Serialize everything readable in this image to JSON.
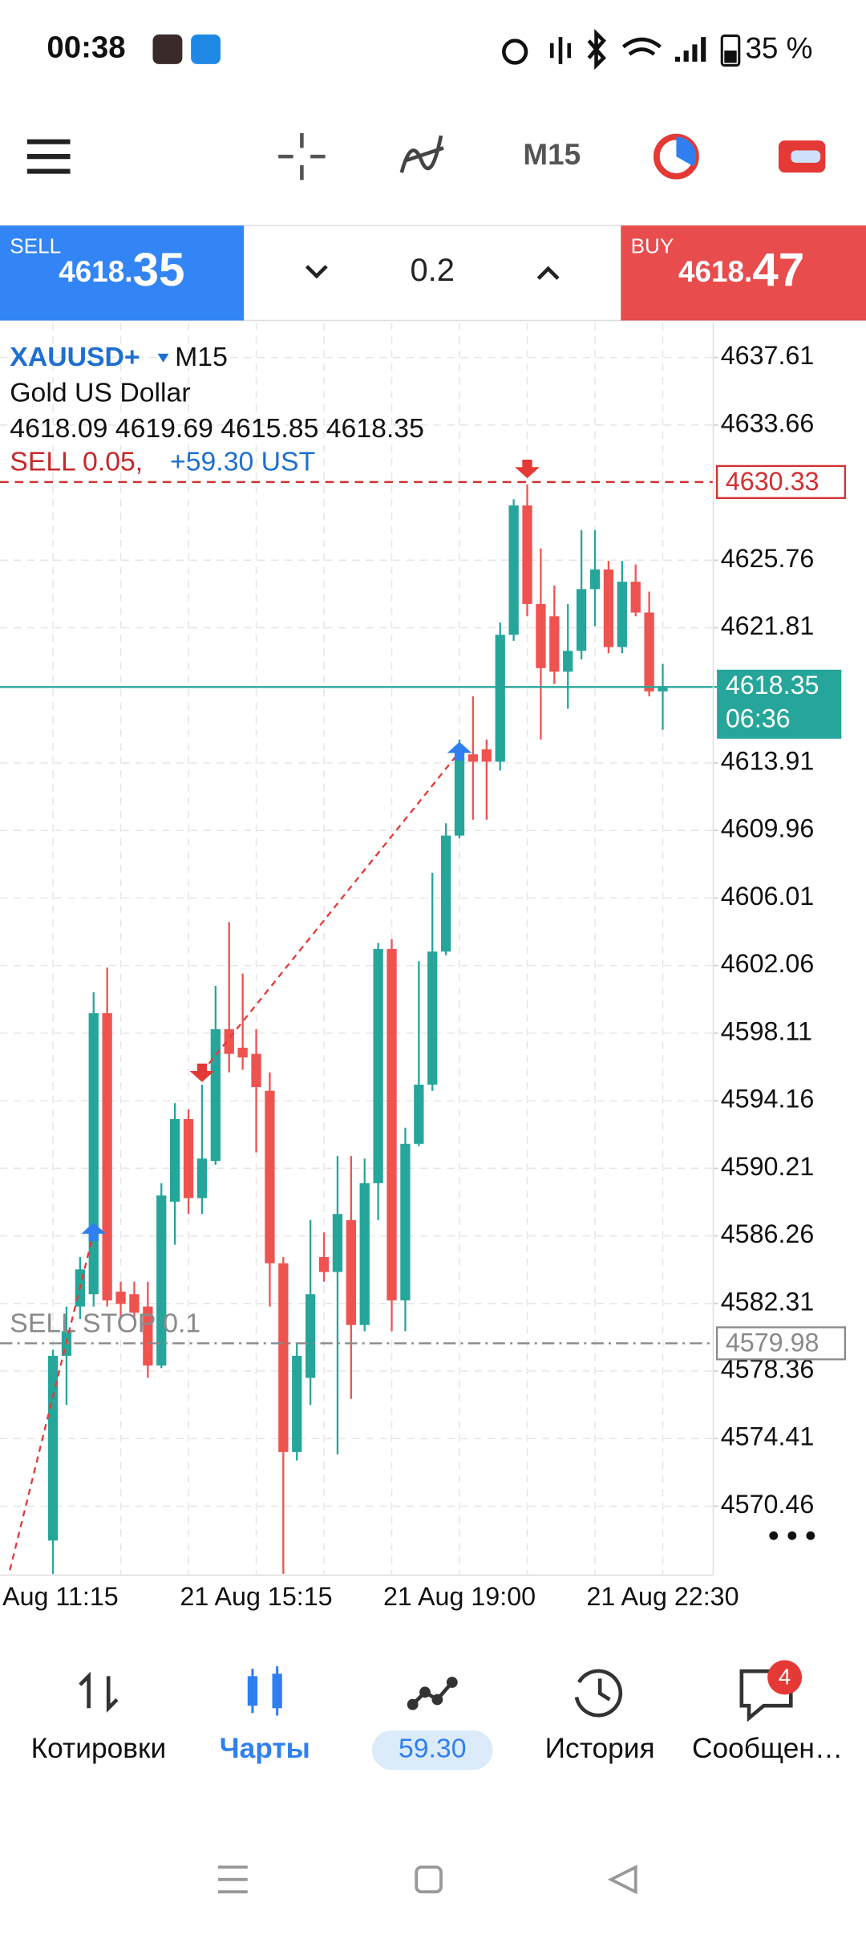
{
  "status_bar": {
    "time": "00:38",
    "battery": "35 %"
  },
  "toolbar": {
    "timeframe": "M15"
  },
  "trade_panel": {
    "sell": {
      "label": "SELL",
      "price_main": "4618.",
      "price_pips": "35"
    },
    "volume": "0.2",
    "buy": {
      "label": "BUY",
      "price_main": "4618.",
      "price_pips": "47"
    }
  },
  "chart_data": {
    "type": "candlestick",
    "title": "XAUUSD+",
    "timeframe": "M15",
    "subtitle": "Gold US Dollar",
    "ohlc_text": "4618.09 4619.69 4615.85 4618.35",
    "position": {
      "label": "SELL 0.05,",
      "profit": "+59.30 UST"
    },
    "categories": [
      "Aug 11:15",
      null,
      null,
      null,
      null,
      null,
      null,
      null,
      null,
      null,
      null,
      null,
      null,
      null,
      null,
      "21 Aug 15:15",
      null,
      null,
      null,
      null,
      null,
      null,
      null,
      null,
      null,
      null,
      null,
      null,
      null,
      null,
      "21 Aug 19:00",
      null,
      null,
      null,
      null,
      null,
      null,
      null,
      null,
      null,
      null,
      null,
      null,
      null,
      null,
      "21 Aug 22:30"
    ],
    "open": [
      4568.45,
      4579.25,
      4582.13,
      4582.85,
      4599.28,
      4583.0,
      4582.85,
      4582.13,
      4578.68,
      4588.26,
      4593.09,
      4588.47,
      4590.64,
      4598.34,
      4597.26,
      4596.9,
      4594.74,
      4584.66,
      4573.63,
      4577.96,
      4585.02,
      4584.15,
      4587.18,
      4581.05,
      4589.34,
      4603.03,
      4582.49,
      4591.64,
      4595.1,
      4602.88,
      4609.66,
      4614.41,
      4614.7,
      4613.98,
      4621.4,
      4628.96,
      4623.2,
      4622.48,
      4619.24,
      4620.46,
      4624.07,
      4625.22,
      4620.68,
      4624.5,
      4622.7,
      4618.09
    ],
    "high": [
      4579.61,
      4582.13,
      4585.02,
      4600.51,
      4601.95,
      4583.58,
      4583.58,
      4583.58,
      4589.34,
      4594.02,
      4593.66,
      4595.1,
      4600.87,
      4604.61,
      4601.59,
      4598.34,
      4595.82,
      4585.02,
      4579.97,
      4587.18,
      4586.46,
      4590.92,
      4590.92,
      4590.78,
      4603.39,
      4603.6,
      4592.58,
      4602.31,
      4607.49,
      4610.38,
      4615.28,
      4617.8,
      4615.28,
      4622.12,
      4629.32,
      4630.19,
      4626.44,
      4624.28,
      4623.2,
      4627.52,
      4627.52,
      4625.72,
      4625.72,
      4625.51,
      4623.92,
      4619.69
    ],
    "low": [
      4566.5,
      4576.37,
      4581.41,
      4582.13,
      4582.13,
      4581.41,
      4581.41,
      4577.96,
      4578.53,
      4585.74,
      4587.54,
      4587.54,
      4590.42,
      4595.82,
      4595.97,
      4591.14,
      4582.13,
      4566.5,
      4573.13,
      4576.37,
      4583.58,
      4573.49,
      4576.73,
      4580.69,
      4587.18,
      4580.69,
      4580.69,
      4591.5,
      4594.74,
      4602.67,
      4609.51,
      4610.59,
      4610.59,
      4613.47,
      4621.04,
      4622.48,
      4615.28,
      4618.52,
      4617.08,
      4619.96,
      4621.9,
      4620.32,
      4620.32,
      4622.48,
      4617.8,
      4615.85
    ],
    "close": [
      4579.25,
      4580.69,
      4584.3,
      4599.28,
      4582.49,
      4582.28,
      4581.77,
      4578.68,
      4588.62,
      4593.09,
      4588.47,
      4590.78,
      4598.34,
      4596.9,
      4596.69,
      4594.96,
      4584.66,
      4573.63,
      4579.25,
      4582.85,
      4584.15,
      4587.54,
      4581.05,
      4589.34,
      4603.03,
      4582.49,
      4591.64,
      4595.1,
      4602.88,
      4609.66,
      4614.2,
      4613.98,
      4613.98,
      4621.4,
      4628.96,
      4623.2,
      4619.45,
      4619.24,
      4620.46,
      4624.07,
      4625.22,
      4620.68,
      4624.5,
      4622.7,
      4618.09,
      4618.35
    ],
    "up_color": "#26a69a",
    "down_color": "#ef5350",
    "buys": [
      null,
      null,
      null,
      4586.46,
      null,
      null,
      null,
      null,
      null,
      null,
      null,
      null,
      null,
      null,
      null,
      null,
      null,
      null,
      null,
      null,
      null,
      null,
      null,
      null,
      null,
      null,
      null,
      null,
      null,
      null,
      4614.56,
      null,
      null,
      null,
      null,
      null,
      null,
      null,
      null,
      null,
      null,
      null,
      null,
      null,
      null,
      null
    ],
    "sells": [
      null,
      null,
      null,
      null,
      null,
      null,
      null,
      null,
      null,
      null,
      null,
      4595.83,
      null,
      null,
      null,
      null,
      null,
      null,
      null,
      null,
      null,
      null,
      null,
      null,
      null,
      null,
      null,
      null,
      null,
      null,
      null,
      null,
      null,
      null,
      null,
      4631.13,
      null,
      null,
      null,
      null,
      null,
      null,
      null,
      null,
      null,
      null
    ],
    "buy_color": "#2f7ff0",
    "sell_color": "#e53935",
    "ylim": [
      4566.43,
      4639.63
    ],
    "yticks": [
      4637.61,
      4633.66,
      4625.76,
      4621.81,
      4613.91,
      4609.96,
      4606.01,
      4602.06,
      4598.11,
      4594.16,
      4590.21,
      4586.26,
      4582.31,
      4578.36,
      4574.41,
      4570.46
    ],
    "grid": true,
    "levels": [
      {
        "value": 4630.33,
        "color": "#d32f2f",
        "style": "dashed"
      },
      {
        "name": "SELL STOP 0.1",
        "value": 4579.98,
        "color": "#8a8a8a",
        "style": "dashdot"
      },
      {
        "value": 4618.35,
        "timer": "06:36",
        "color": "#26a69a",
        "style": "solid"
      }
    ]
  },
  "bottom_nav": {
    "items": [
      "Котировки",
      "Чарты",
      "59.30",
      "История",
      "Сообщен…"
    ],
    "badge": "4"
  }
}
